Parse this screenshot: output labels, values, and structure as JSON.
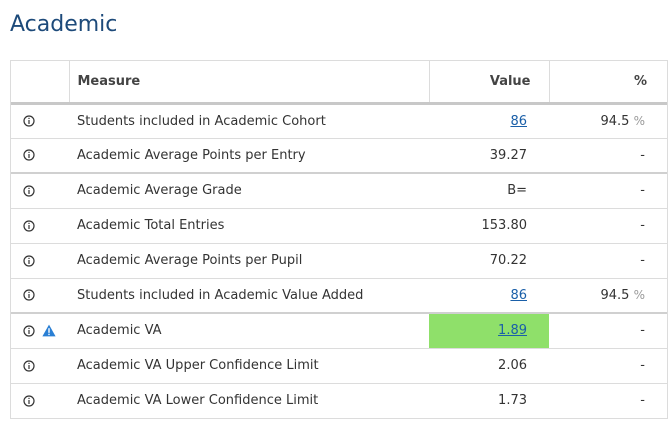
{
  "page": {
    "title": "Academic"
  },
  "table": {
    "headers": {
      "measure": "Measure",
      "value": "Value",
      "pct": "%"
    },
    "pct_symbol": "%",
    "rows": [
      {
        "measure": "Students included in Academic Cohort",
        "value": "86",
        "pct": "94.5"
      },
      {
        "measure": "Academic Average Points per Entry",
        "value": "39.27",
        "pct": "-"
      },
      {
        "measure": "Academic Average Grade",
        "value": "B=",
        "pct": "-"
      },
      {
        "measure": "Academic Total Entries",
        "value": "153.80",
        "pct": "-"
      },
      {
        "measure": "Academic Average Points per Pupil",
        "value": "70.22",
        "pct": "-"
      },
      {
        "measure": "Students included in Academic Value Added",
        "value": "86",
        "pct": "94.5"
      },
      {
        "measure": "Academic VA",
        "value": "1.89",
        "pct": "-"
      },
      {
        "measure": "Academic VA Upper Confidence Limit",
        "value": "2.06",
        "pct": "-"
      },
      {
        "measure": "Academic VA Lower Confidence Limit",
        "value": "1.73",
        "pct": "-"
      }
    ]
  },
  "icons": {
    "info": "info-circle-icon",
    "warning": "warning-triangle-icon"
  },
  "colors": {
    "title": "#1d4a7a",
    "link": "#1a5fa8",
    "highlight": "#8fe06a",
    "warning": "#2a7fd4"
  }
}
